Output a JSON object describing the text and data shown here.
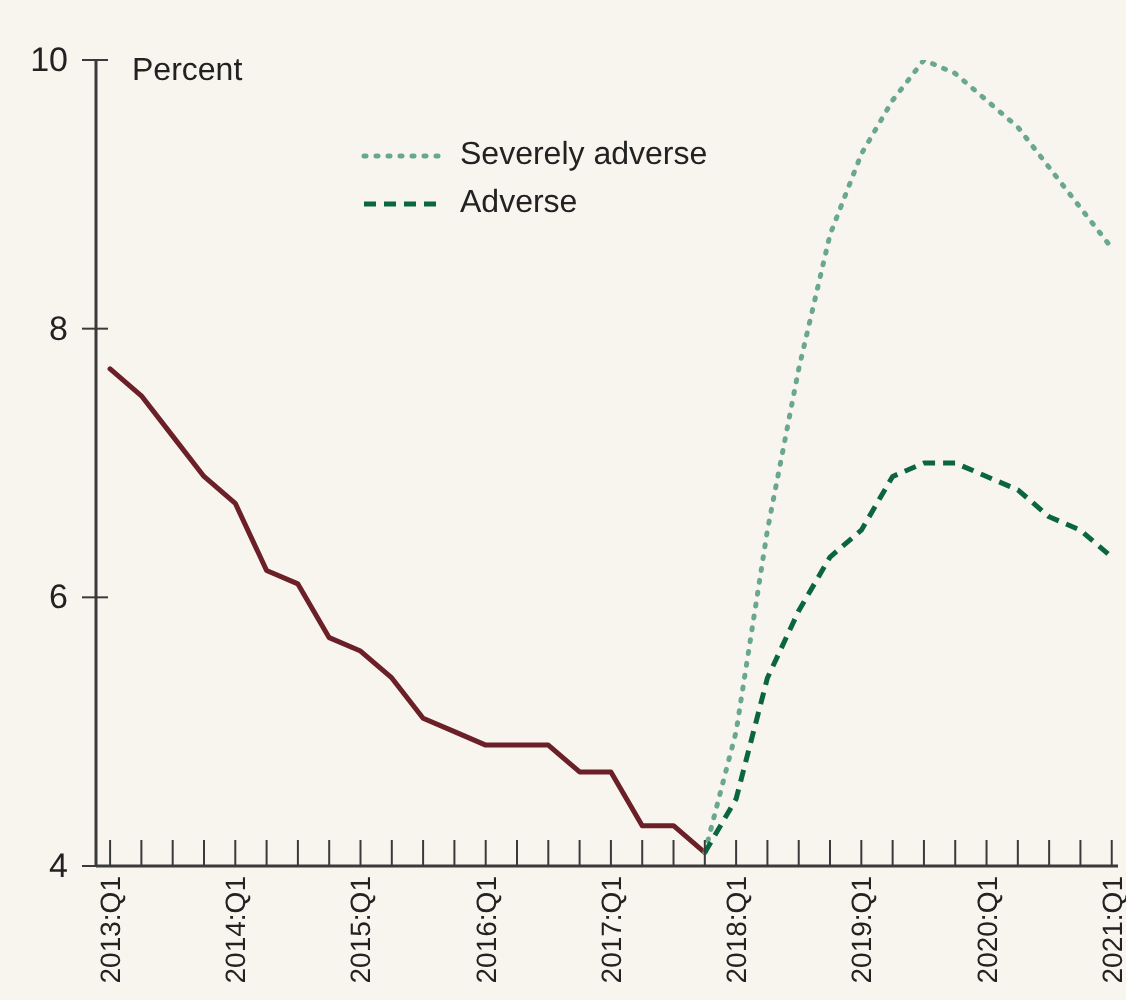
{
  "chart_data": {
    "type": "line",
    "ylabel": "Percent",
    "categories": [
      "2013:Q1",
      null,
      null,
      null,
      "2014:Q1",
      null,
      null,
      null,
      "2015:Q1",
      null,
      null,
      null,
      "2016:Q1",
      null,
      null,
      null,
      "2017:Q1",
      null,
      null,
      null,
      "2018:Q1",
      null,
      null,
      null,
      "2019:Q1",
      null,
      null,
      null,
      "2020:Q1",
      null,
      null,
      null,
      "2021:Q1"
    ],
    "series": [
      {
        "color": "#6b1f26",
        "line_style": "solid",
        "values": [
          7.7,
          7.5,
          7.2,
          6.9,
          6.7,
          6.2,
          6.1,
          5.7,
          5.6,
          5.4,
          5.1,
          5.0,
          4.9,
          4.9,
          4.9,
          4.7,
          4.7,
          4.3,
          4.3,
          4.1,
          null,
          null,
          null,
          null,
          null,
          null,
          null,
          null,
          null,
          null,
          null,
          null,
          null
        ]
      },
      {
        "name": "Severely adverse",
        "color": "#6aa88e",
        "line_style": "dotted",
        "values": [
          null,
          null,
          null,
          null,
          null,
          null,
          null,
          null,
          null,
          null,
          null,
          null,
          null,
          null,
          null,
          null,
          null,
          null,
          null,
          4.1,
          5.0,
          6.5,
          7.7,
          8.7,
          9.3,
          9.7,
          10.0,
          9.9,
          9.7,
          9.5,
          9.2,
          8.9,
          8.6
        ]
      },
      {
        "name": "Adverse",
        "color": "#0b6640",
        "line_style": "dashed",
        "values": [
          null,
          null,
          null,
          null,
          null,
          null,
          null,
          null,
          null,
          null,
          null,
          null,
          null,
          null,
          null,
          null,
          null,
          null,
          null,
          4.1,
          4.5,
          5.4,
          5.9,
          6.3,
          6.5,
          6.9,
          7.0,
          7.0,
          6.9,
          6.8,
          6.6,
          6.5,
          6.3
        ]
      }
    ],
    "ylim": [
      4,
      10
    ],
    "yticks": [
      4,
      6,
      8,
      10
    ],
    "grid": false,
    "legend": "top",
    "marker": "none"
  }
}
